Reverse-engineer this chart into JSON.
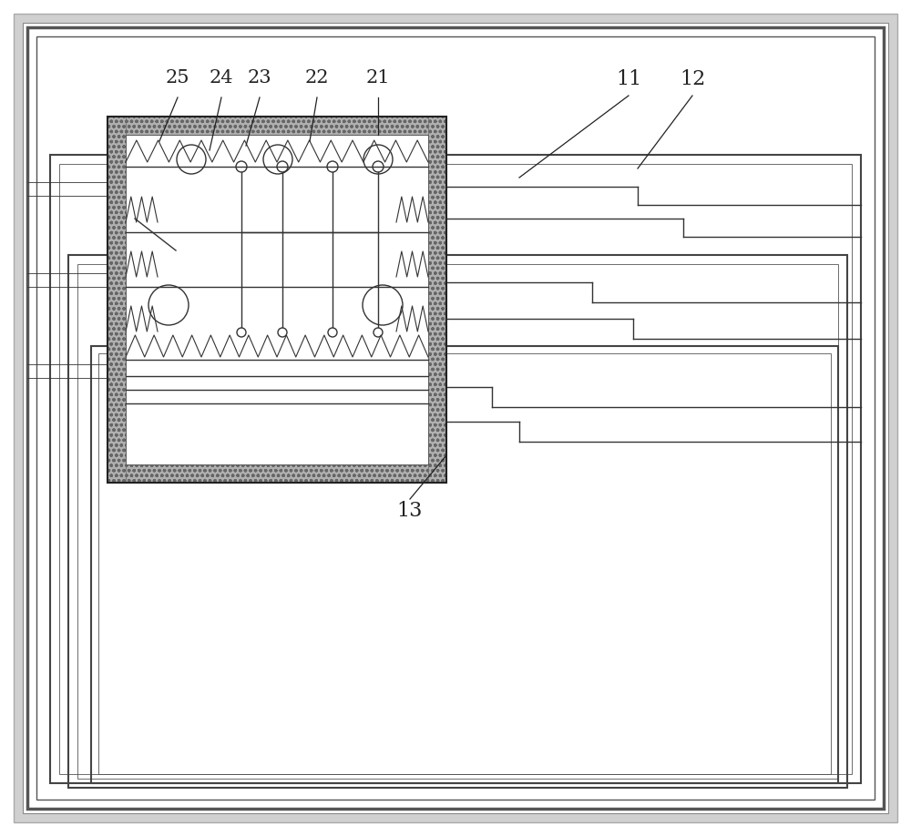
{
  "bg_color": "#ffffff",
  "line_color": "#333333",
  "gray_bg": "#cccccc",
  "figure_bg": "#ffffff",
  "label_fontsize": 15,
  "hatch_color": "#888888"
}
